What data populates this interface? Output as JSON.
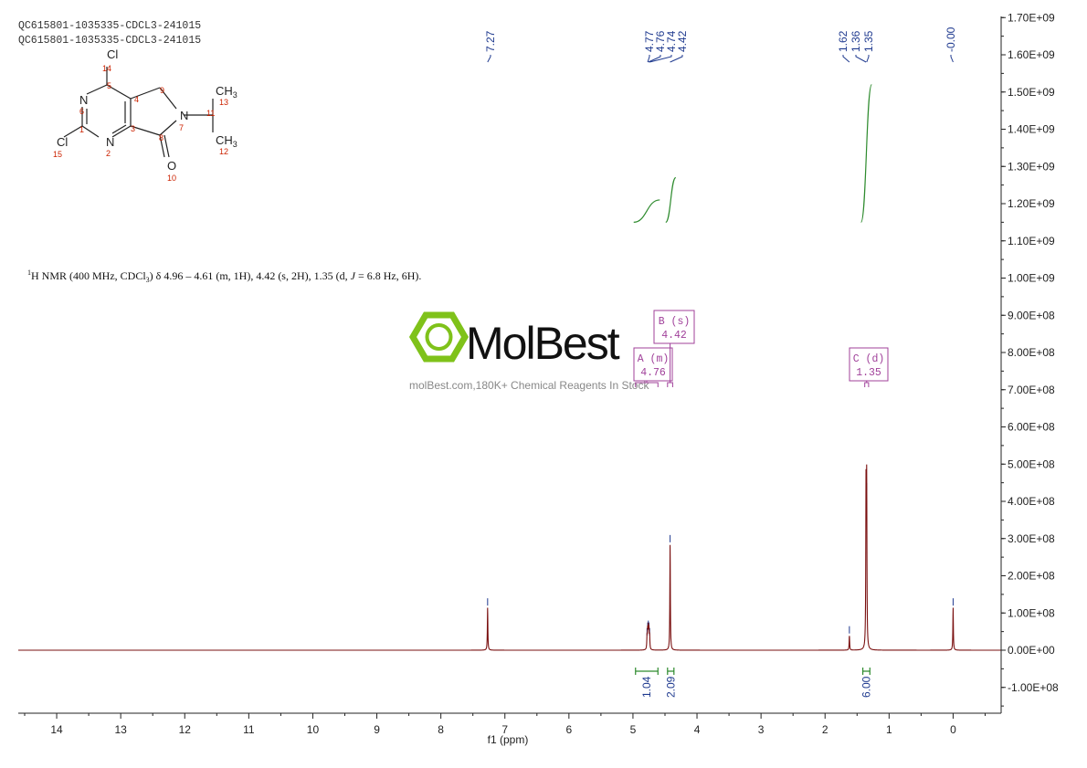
{
  "header": {
    "sample_lines": [
      "QC615801-1035335-CDCL3-241015",
      "QC615801-1035335-CDCL3-241015"
    ]
  },
  "structure": {
    "atoms": [
      {
        "id": "Cl14",
        "label": "Cl",
        "num": "14"
      },
      {
        "id": "C5",
        "label": "",
        "num": "5"
      },
      {
        "id": "C4",
        "label": "",
        "num": "4"
      },
      {
        "id": "N6",
        "label": "N",
        "num": "6"
      },
      {
        "id": "C1",
        "label": "",
        "num": "1"
      },
      {
        "id": "Cl15",
        "label": "Cl",
        "num": "15"
      },
      {
        "id": "N2",
        "label": "N",
        "num": "2"
      },
      {
        "id": "C3",
        "label": "",
        "num": "3"
      },
      {
        "id": "C9",
        "label": "",
        "num": "9"
      },
      {
        "id": "N7",
        "label": "N",
        "num": "7"
      },
      {
        "id": "C8",
        "label": "",
        "num": "8"
      },
      {
        "id": "O10",
        "label": "O",
        "num": "10"
      },
      {
        "id": "C11",
        "label": "",
        "num": "11"
      },
      {
        "id": "CH3_13",
        "label": "CH3",
        "num": "13"
      },
      {
        "id": "CH3_12",
        "label": "CH3",
        "num": "12"
      }
    ]
  },
  "nmr_summary": {
    "superscript": "1",
    "prefix": "H NMR (400 MHz, CDCl",
    "subscript": "3",
    "main": ") δ 4.96 – 4.61 (m, 1H), 4.42 (s, 2H), 1.35 (d, ",
    "j_symbol": "J",
    "suffix": " = 6.8 Hz, 6H)."
  },
  "watermark": {
    "brand": "MolBest",
    "tagline": "molBest.com,180K+ Chemical Reagents In Stock"
  },
  "colors": {
    "spectrum": "#7a1010",
    "peak_label": "#1f3a8f",
    "integral_curve": "#2e8b2e",
    "multiplet_box": "#a0409a",
    "atom_number": "#cc2200",
    "logo_green": "#7fc21a"
  },
  "chart_data": {
    "type": "line",
    "title": "",
    "xlabel": "f1 (ppm)",
    "ylabel": "",
    "x_reversed": true,
    "xlim": [
      14.6,
      -0.75
    ],
    "ylim": [
      -170000000,
      1700000000
    ],
    "x_ticks": [
      14,
      13,
      12,
      11,
      10,
      9,
      8,
      7,
      6,
      5,
      4,
      3,
      2,
      1,
      0
    ],
    "y_ticks": [
      {
        "value": 1700000000,
        "label": "1.70E+09"
      },
      {
        "value": 1600000000,
        "label": "1.60E+09"
      },
      {
        "value": 1500000000,
        "label": "1.50E+09"
      },
      {
        "value": 1400000000,
        "label": "1.40E+09"
      },
      {
        "value": 1300000000,
        "label": "1.30E+09"
      },
      {
        "value": 1200000000,
        "label": "1.20E+09"
      },
      {
        "value": 1100000000,
        "label": "1.10E+09"
      },
      {
        "value": 1000000000,
        "label": "1.00E+09"
      },
      {
        "value": 900000000,
        "label": "9.00E+08"
      },
      {
        "value": 800000000,
        "label": "8.00E+08"
      },
      {
        "value": 700000000,
        "label": "7.00E+08"
      },
      {
        "value": 600000000,
        "label": "6.00E+08"
      },
      {
        "value": 500000000,
        "label": "5.00E+08"
      },
      {
        "value": 400000000,
        "label": "4.00E+08"
      },
      {
        "value": 300000000,
        "label": "3.00E+08"
      },
      {
        "value": 200000000,
        "label": "2.00E+08"
      },
      {
        "value": 100000000,
        "label": "1.00E+08"
      },
      {
        "value": 0,
        "label": "0.00E+00"
      },
      {
        "value": -100000000,
        "label": "-1.00E+08"
      }
    ],
    "peaks": [
      {
        "ppm": 7.27,
        "height": 115000000
      },
      {
        "ppm": 4.78,
        "height": 35000000
      },
      {
        "ppm": 4.77,
        "height": 50000000
      },
      {
        "ppm": 4.76,
        "height": 55000000
      },
      {
        "ppm": 4.75,
        "height": 50000000
      },
      {
        "ppm": 4.74,
        "height": 35000000
      },
      {
        "ppm": 4.42,
        "height": 285000000
      },
      {
        "ppm": 1.62,
        "height": 40000000
      },
      {
        "ppm": 1.36,
        "height": 430000000
      },
      {
        "ppm": 1.35,
        "height": 425000000
      },
      {
        "ppm": 0.0,
        "height": 115000000
      }
    ],
    "peak_labels": [
      {
        "label": "7.27",
        "ppm": 7.27
      },
      {
        "label": "4.77",
        "ppm": 4.77
      },
      {
        "label": "4.76",
        "ppm": 4.76
      },
      {
        "label": "4.74",
        "ppm": 4.74
      },
      {
        "label": "4.42",
        "ppm": 4.42
      },
      {
        "label": "1.62",
        "ppm": 1.62
      },
      {
        "label": "1.36",
        "ppm": 1.36
      },
      {
        "label": "1.35",
        "ppm": 1.35
      },
      {
        "label": "-0.00",
        "ppm": 0.0
      }
    ],
    "integrals": [
      {
        "value": "1.04",
        "from": 4.96,
        "to": 4.61,
        "curve_start": 1150000000,
        "curve_end": 1210000000
      },
      {
        "value": "2.09",
        "from": 4.46,
        "to": 4.36,
        "curve_start": 1150000000,
        "curve_end": 1270000000
      },
      {
        "value": "6.00",
        "from": 1.41,
        "to": 1.3,
        "curve_start": 1150000000,
        "curve_end": 1520000000
      }
    ],
    "multiplets": [
      {
        "id": "A",
        "type": "m",
        "shift": "4.76",
        "from": 4.96,
        "to": 4.61
      },
      {
        "id": "B",
        "type": "s",
        "shift": "4.42",
        "from": 4.46,
        "to": 4.38
      },
      {
        "id": "C",
        "type": "d",
        "shift": "1.35",
        "from": 1.38,
        "to": 1.32
      }
    ]
  }
}
